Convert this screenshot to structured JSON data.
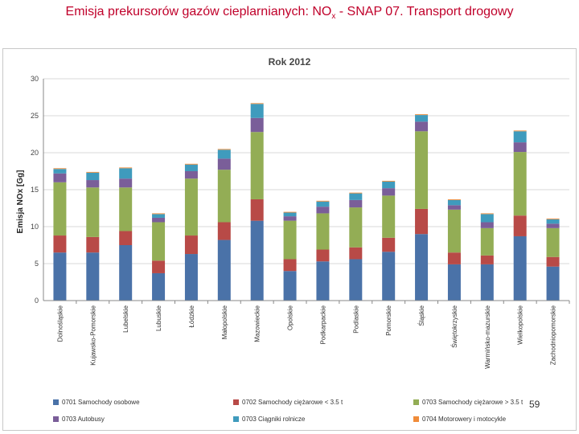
{
  "slide": {
    "title_main": "Emisja prekursorów gazów cieplarnianych:  NO",
    "title_sub": "x",
    "title_rest": " - SNAP 07. Transport drogowy",
    "page_number": "59"
  },
  "chart_data": {
    "type": "bar",
    "stacked": true,
    "title": "Rok 2012",
    "ylabel": "Emisja NOx [Gg]",
    "xlabel": "",
    "ylim": [
      0,
      30
    ],
    "yticks": [
      0,
      5,
      10,
      15,
      20,
      25,
      30
    ],
    "grid": true,
    "legend_position": "bottom",
    "categories": [
      "Dolnośląskie",
      "Kujawsko-Pomorskie",
      "Lubelskie",
      "Lubuskie",
      "Łódzkie",
      "Małopolskie",
      "Mazowieckie",
      "Opolskie",
      "Podkarpackie",
      "Podlaskie",
      "Pomorskie",
      "Śląskie",
      "Świętokrzyskie",
      "Warmińsko-mazurskie",
      "Wielkopolskie",
      "Zachodniopomorskie"
    ],
    "series": [
      {
        "name": "0701  Samochody osobowe",
        "color": "#4a72a8",
        "values": [
          6.5,
          6.5,
          7.5,
          3.7,
          6.3,
          8.2,
          10.8,
          4.0,
          5.3,
          5.6,
          6.6,
          9.0,
          4.9,
          4.9,
          8.7,
          4.6
        ]
      },
      {
        "name": "0702  Samochody ciężarowe < 3.5 t",
        "color": "#b84a47",
        "values": [
          2.3,
          2.1,
          1.9,
          1.7,
          2.5,
          2.4,
          2.9,
          1.6,
          1.6,
          1.6,
          1.9,
          3.4,
          1.6,
          1.2,
          2.8,
          1.3
        ]
      },
      {
        "name": "0703  Samochody ciężarowe > 3.5 t",
        "color": "#93ad55",
        "values": [
          7.2,
          6.7,
          5.9,
          5.2,
          7.7,
          7.1,
          9.1,
          5.2,
          4.9,
          5.4,
          5.7,
          10.5,
          5.8,
          3.7,
          8.6,
          3.9
        ]
      },
      {
        "name": "0703  Autobusy",
        "color": "#7a5e99",
        "values": [
          1.2,
          1.0,
          1.2,
          0.6,
          1.0,
          1.5,
          1.9,
          0.6,
          0.9,
          1.0,
          1.0,
          1.3,
          0.6,
          0.8,
          1.3,
          0.6
        ]
      },
      {
        "name": "0703  Ciągniki rolnicze",
        "color": "#3f9bbd",
        "values": [
          0.6,
          1.0,
          1.4,
          0.5,
          0.9,
          1.2,
          1.9,
          0.5,
          0.7,
          0.9,
          0.9,
          0.9,
          0.7,
          1.1,
          1.5,
          0.6
        ]
      },
      {
        "name": "0704  Motorowery i motocykle",
        "color": "#f08c3a",
        "values": [
          0.1,
          0.1,
          0.1,
          0.1,
          0.1,
          0.1,
          0.1,
          0.1,
          0.1,
          0.1,
          0.1,
          0.1,
          0.1,
          0.1,
          0.1,
          0.1
        ]
      }
    ]
  }
}
